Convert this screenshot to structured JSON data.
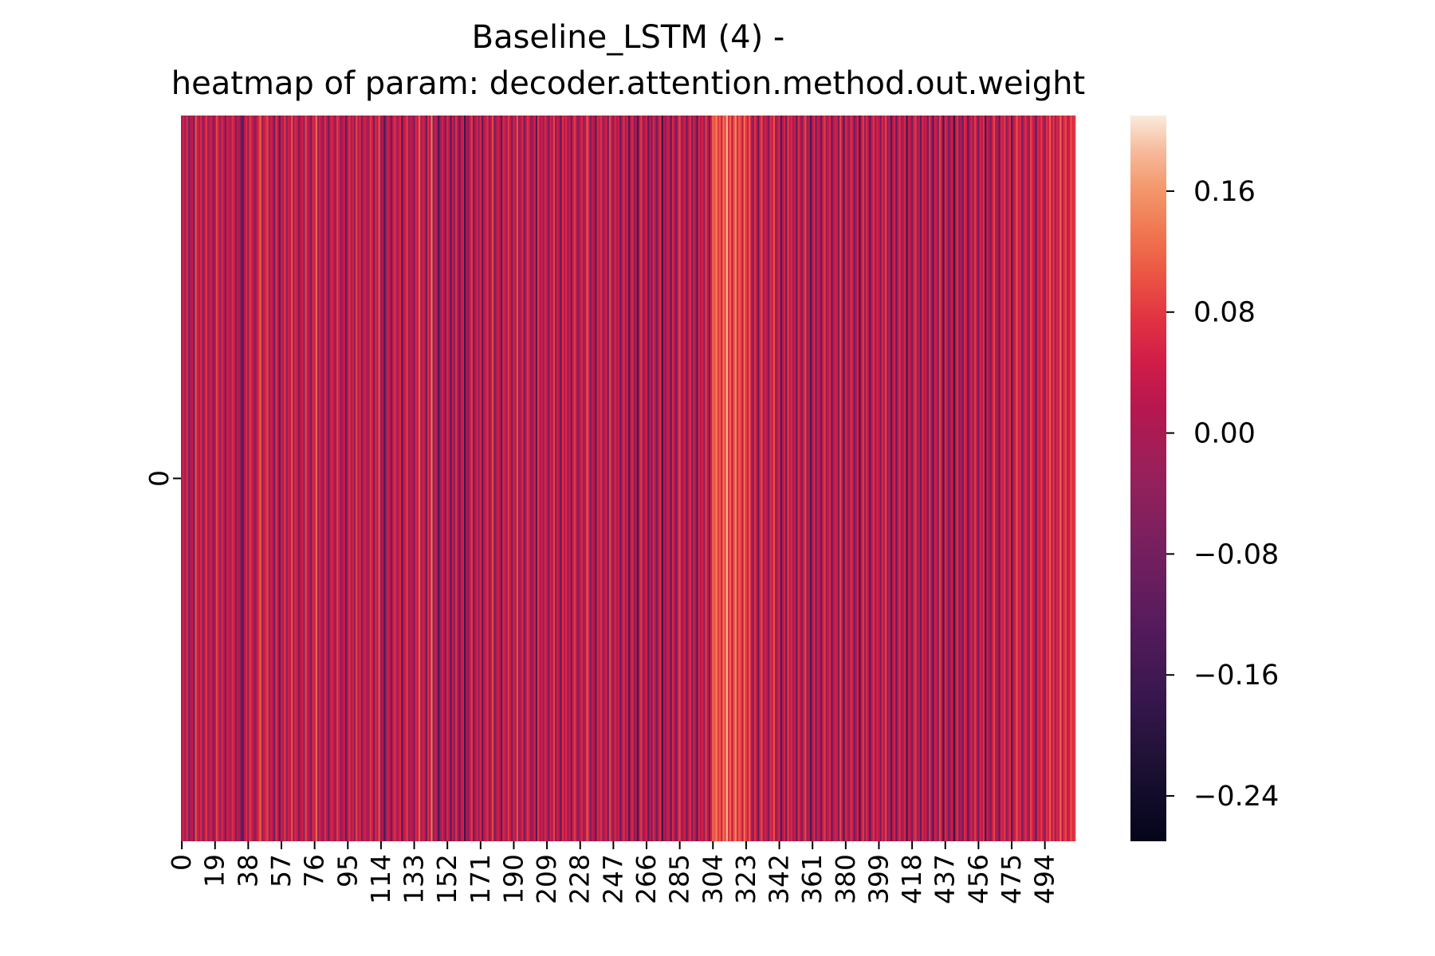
{
  "chart_data": {
    "type": "heatmap",
    "title": "Baseline_LSTM (4) -\nheatmap of param: decoder.attention.method.out.weight",
    "title_lines": [
      "Baseline_LSTM (4) -",
      "heatmap of param: decoder.attention.method.out.weight"
    ],
    "rows": 1,
    "columns": 512,
    "y_tick_labels": [
      "0"
    ],
    "x_tick_labels": [
      "0",
      "19",
      "38",
      "57",
      "76",
      "95",
      "114",
      "133",
      "152",
      "171",
      "190",
      "209",
      "228",
      "247",
      "266",
      "285",
      "304",
      "323",
      "342",
      "361",
      "380",
      "399",
      "418",
      "437",
      "456",
      "475",
      "494"
    ],
    "x_tick_positions": [
      0,
      19,
      38,
      57,
      76,
      95,
      114,
      133,
      152,
      171,
      190,
      209,
      228,
      247,
      266,
      285,
      304,
      323,
      342,
      361,
      380,
      399,
      418,
      437,
      456,
      475,
      494
    ],
    "colorbar": {
      "vmin": -0.27,
      "vmax": 0.21,
      "ticks": [
        0.16,
        0.08,
        0.0,
        -0.08,
        -0.16,
        -0.24
      ],
      "tick_labels": [
        "0.16",
        "0.08",
        "0.00",
        "−0.08",
        "−0.16",
        "−0.24"
      ],
      "colormap": "rocket"
    },
    "values_note": "column values (estimated per cell color) are drawn in the heatmap strip",
    "values": [
      0.02,
      0.05,
      -0.03,
      0.07,
      -0.06,
      0.01,
      0.03,
      -0.09,
      0.1,
      0.04,
      0.0,
      0.06,
      -0.05,
      0.02,
      0.08,
      -0.02,
      0.03,
      0.05,
      -0.07,
      0.01,
      0.09,
      0.04,
      -0.04,
      0.06,
      0.02,
      -0.08,
      0.05,
      0.03,
      -0.01,
      0.07,
      0.04,
      -0.06,
      0.03,
      0.01,
      -0.1,
      -0.12,
      0.02,
      0.06,
      -0.04,
      0.08,
      0.05,
      0.0,
      -0.05,
      0.03,
      0.07,
      0.11,
      -0.02,
      0.04,
      0.06,
      0.09,
      -0.03,
      0.05,
      0.02,
      -0.09,
      0.07,
      0.03,
      -0.11,
      0.04,
      0.01,
      0.08,
      -0.06,
      0.05,
      0.03,
      0.1,
      -0.02,
      0.06,
      0.04,
      -0.07,
      0.02,
      0.05,
      -0.04,
      0.09,
      0.03,
      0.01,
      -0.08,
      0.06,
      0.04,
      0.12,
      -0.03,
      0.05,
      0.02,
      -0.05,
      0.07,
      0.03,
      -0.09,
      0.04,
      0.06,
      0.01,
      -0.03,
      0.08,
      0.05,
      -0.06,
      0.02,
      0.04,
      -0.11,
      0.03,
      0.07,
      0.0,
      0.05,
      -0.04,
      0.09,
      0.02,
      0.06,
      -0.07,
      0.03,
      0.05,
      0.01,
      -0.02,
      0.08,
      0.04,
      -0.08,
      0.06,
      0.03,
      0.1,
      -0.05,
      0.02,
      -0.14,
      -0.03,
      0.05,
      0.01,
      -0.09,
      0.04,
      0.07,
      -0.01,
      0.03,
      0.06,
      -0.12,
      0.02,
      0.05,
      0.08,
      -0.04,
      0.03,
      0.01,
      -0.07,
      0.06,
      0.04,
      0.11,
      -0.02,
      0.05,
      0.03,
      -0.1,
      0.07,
      0.02,
      0.13,
      -0.06,
      0.04,
      0.01,
      -0.15,
      -0.03,
      0.05,
      0.02,
      -0.08,
      0.06,
      0.03,
      -0.13,
      0.04,
      -0.05,
      0.07,
      0.01,
      -0.1,
      0.03,
      0.05,
      -0.17,
      0.02,
      -0.06,
      0.04,
      0.08,
      -0.09,
      0.01,
      0.05,
      -0.03,
      0.06,
      -0.11,
      0.02,
      0.04,
      0.07,
      -0.05,
      0.03,
      0.09,
      -0.08,
      0.01,
      0.05,
      0.02,
      -0.12,
      0.06,
      0.04,
      -0.02,
      0.08,
      0.03,
      -0.07,
      0.05,
      0.01,
      0.1,
      -0.04,
      0.02,
      0.06,
      -0.09,
      0.03,
      0.07,
      0.04,
      -0.06,
      0.01,
      0.05,
      -0.13,
      0.08,
      0.02,
      0.04,
      -0.03,
      0.06,
      0.03,
      -0.08,
      0.05,
      0.01,
      0.09,
      -0.05,
      0.04,
      0.02,
      -0.11,
      0.07,
      0.03,
      0.06,
      -0.02,
      0.04,
      -0.09,
      0.05,
      0.08,
      0.01,
      -0.06,
      0.03,
      0.06,
      -0.04,
      0.02,
      0.1,
      0.05,
      -0.07,
      0.03,
      0.01,
      -0.12,
      0.06,
      0.04,
      0.07,
      -0.03,
      0.02,
      0.05,
      -0.08,
      0.09,
      0.03,
      -0.05,
      0.06,
      0.01,
      0.04,
      -0.1,
      0.02,
      0.07,
      -0.02,
      0.05,
      -0.14,
      0.03,
      0.06,
      -0.06,
      0.01,
      -0.16,
      0.04,
      0.08,
      -0.04,
      0.02,
      0.05,
      -0.11,
      0.03,
      -0.07,
      0.06,
      0.01,
      -0.09,
      0.04,
      0.07,
      -0.18,
      0.02,
      -0.05,
      0.05,
      0.03,
      -0.12,
      0.06,
      0.01,
      -0.08,
      0.04,
      0.09,
      -0.03,
      0.02,
      0.05,
      -0.1,
      0.03,
      0.07,
      -0.06,
      0.04,
      0.01,
      -0.13,
      0.06,
      0.02,
      0.05,
      -0.04,
      0.08,
      0.03,
      -0.09,
      0.05,
      0.12,
      0.1,
      0.14,
      0.08,
      0.11,
      0.05,
      0.13,
      0.09,
      0.18,
      0.07,
      0.12,
      0.04,
      0.1,
      0.15,
      0.06,
      0.11,
      0.09,
      0.03,
      0.13,
      0.08,
      0.05,
      0.11,
      0.02,
      -0.06,
      0.07,
      0.04,
      -0.11,
      0.06,
      0.09,
      -0.03,
      0.05,
      0.02,
      -0.08,
      0.07,
      0.04,
      0.1,
      -0.05,
      0.03,
      0.06,
      -0.14,
      0.01,
      0.05,
      -0.09,
      0.08,
      0.03,
      0.06,
      -0.02,
      0.04,
      -0.12,
      0.07,
      0.02,
      -0.06,
      0.05,
      0.09,
      -0.04,
      0.03,
      -0.15,
      0.01,
      0.06,
      -0.08,
      0.04,
      0.02,
      -0.11,
      0.05,
      0.08,
      -0.03,
      0.03,
      0.06,
      -0.1,
      0.01,
      0.05,
      0.04,
      -0.07,
      0.09,
      0.02,
      -0.13,
      0.06,
      0.03,
      -0.05,
      0.07,
      0.04,
      -0.09,
      0.02,
      0.05,
      -0.16,
      0.03,
      0.08,
      -0.04,
      0.06,
      0.01,
      -0.12,
      0.04,
      0.07,
      -0.02,
      0.05,
      0.03,
      -0.08,
      0.06,
      0.02,
      0.09,
      -0.06,
      0.04,
      -0.14,
      0.01,
      0.05,
      -0.1,
      0.03,
      0.07,
      -0.04,
      0.02,
      0.06,
      -0.17,
      0.04,
      0.01,
      -0.07,
      0.05,
      0.08,
      -0.03,
      0.03,
      -0.11,
      0.06,
      0.02,
      0.04,
      -0.09,
      0.07,
      0.01,
      -0.13,
      0.05,
      0.03,
      -0.05,
      0.09,
      0.02,
      -0.15,
      0.06,
      0.04,
      -0.08,
      0.01,
      0.05,
      -0.19,
      0.03,
      0.07,
      -0.06,
      0.02,
      -0.1,
      0.06,
      0.04,
      -0.12,
      0.01,
      0.05,
      -0.04,
      0.08,
      0.03,
      -0.09,
      0.06,
      0.02,
      0.07,
      -0.16,
      0.04,
      0.01,
      -0.07,
      0.05,
      0.09,
      -0.03,
      0.02,
      -0.11,
      0.06,
      0.04,
      0.08,
      -0.05,
      0.03,
      0.07,
      -0.13,
      0.01,
      0.05,
      0.1,
      0.04,
      0.06,
      -0.08,
      0.03,
      0.07,
      0.02,
      -0.04,
      0.09,
      0.05,
      0.01,
      -0.1,
      0.06,
      0.04,
      0.08,
      0.03,
      -0.06,
      0.07,
      0.05,
      0.11,
      0.02,
      0.08,
      -0.03,
      0.06,
      0.04,
      0.12,
      0.01,
      0.07,
      0.09,
      0.03,
      0.05,
      0.1,
      0.06,
      0.08
    ]
  }
}
